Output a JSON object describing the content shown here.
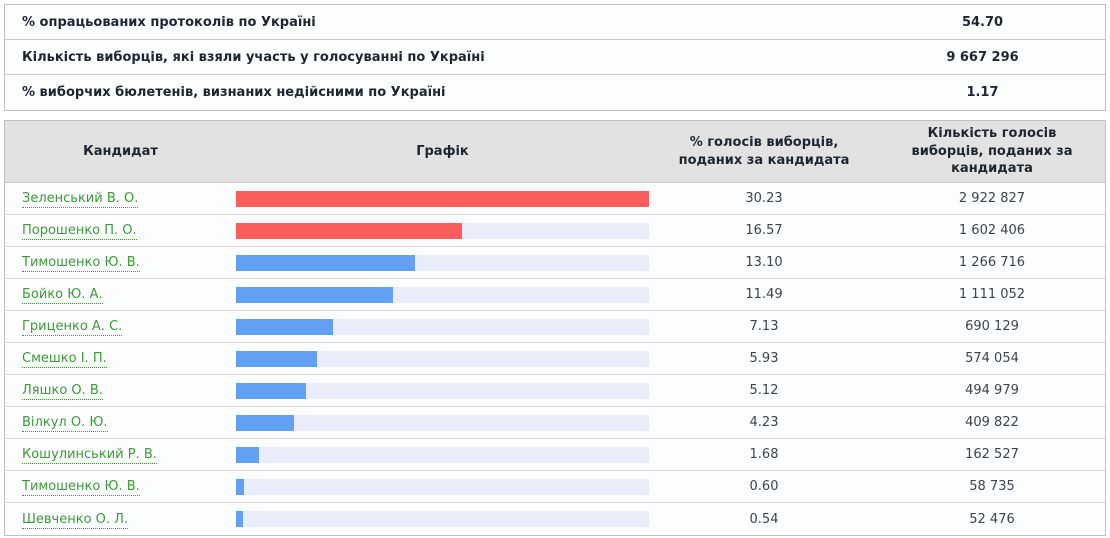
{
  "colors": {
    "bar_red": "#fb5d5d",
    "bar_blue": "#61a0f2",
    "bar_track": "#e9edf9",
    "link_green": "#3d9b35",
    "header_bg": "#e2e2e2"
  },
  "stats": {
    "rows": [
      {
        "label": "% опрацьованих протоколів по Україні",
        "value": "54.70"
      },
      {
        "label": "Кількість виборців, які взяли участь у голосуванні по Україні",
        "value": "9 667 296"
      },
      {
        "label": "% виборчих бюлетенів, визнаних недійсними по Україні",
        "value": "1.17"
      }
    ]
  },
  "results_table": {
    "headers": {
      "candidate": "Кандидат",
      "chart": "Графік",
      "percent": "% голосів виборців, поданих за кандидата",
      "votes": "Кількість голосів виборців, поданих за кандидата"
    },
    "rows": [
      {
        "candidate": "Зеленський В. О.",
        "percent": "30.23",
        "votes": "2 922 827",
        "bar_color": "red"
      },
      {
        "candidate": "Порошенко П. О.",
        "percent": "16.57",
        "votes": "1 602 406",
        "bar_color": "red"
      },
      {
        "candidate": "Тимошенко Ю. В.",
        "percent": "13.10",
        "votes": "1 266 716",
        "bar_color": "blue"
      },
      {
        "candidate": "Бойко Ю. А.",
        "percent": "11.49",
        "votes": "1 111 052",
        "bar_color": "blue"
      },
      {
        "candidate": "Гриценко А. С.",
        "percent": "7.13",
        "votes": "690 129",
        "bar_color": "blue"
      },
      {
        "candidate": "Смешко І. П.",
        "percent": "5.93",
        "votes": "574 054",
        "bar_color": "blue"
      },
      {
        "candidate": "Ляшко О. В.",
        "percent": "5.12",
        "votes": "494 979",
        "bar_color": "blue"
      },
      {
        "candidate": "Вілкул О. Ю.",
        "percent": "4.23",
        "votes": "409 822",
        "bar_color": "blue"
      },
      {
        "candidate": "Кошулинський Р. В.",
        "percent": "1.68",
        "votes": "162 527",
        "bar_color": "blue"
      },
      {
        "candidate": "Тимошенко Ю. В.",
        "percent": "0.60",
        "votes": "58 735",
        "bar_color": "blue"
      },
      {
        "candidate": "Шевченко О. Л.",
        "percent": "0.54",
        "votes": "52 476",
        "bar_color": "blue"
      }
    ]
  },
  "chart_data": {
    "type": "bar",
    "orientation": "horizontal",
    "categories": [
      "Зеленський В. О.",
      "Порошенко П. О.",
      "Тимошенко Ю. В.",
      "Бойко Ю. А.",
      "Гриценко А. С.",
      "Смешко І. П.",
      "Ляшко О. В.",
      "Вілкул О. Ю.",
      "Кошулинський Р. В.",
      "Тимошенко Ю. В.",
      "Шевченко О. Л."
    ],
    "values": [
      30.23,
      16.57,
      13.1,
      11.49,
      7.13,
      5.93,
      5.12,
      4.23,
      1.68,
      0.6,
      0.54
    ],
    "votes": [
      2922827,
      1602406,
      1266716,
      1111052,
      690129,
      574054,
      494979,
      409822,
      162527,
      58735,
      52476
    ],
    "series_label": "% голосів виборців, поданих за кандидата",
    "xlim": [
      0,
      30.23
    ],
    "bar_colors": [
      "#fb5d5d",
      "#fb5d5d",
      "#61a0f2",
      "#61a0f2",
      "#61a0f2",
      "#61a0f2",
      "#61a0f2",
      "#61a0f2",
      "#61a0f2",
      "#61a0f2",
      "#61a0f2"
    ]
  }
}
